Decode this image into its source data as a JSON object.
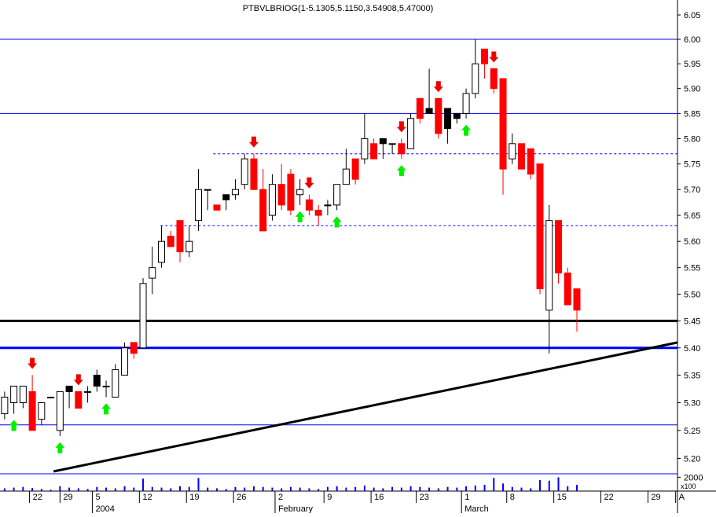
{
  "chart_data": {
    "type": "candlestick",
    "title": "PTBVLBRIOG(1-5.1305,5.1150,3.54908,5.47000)",
    "log_scale": true,
    "ylim": [
      5.177,
      6.081
    ],
    "yticks": [
      6.05,
      {
        "value": 6.0,
        "label": "6.00"
      },
      5.95,
      {
        "value": 5.9,
        "label": "5.90"
      },
      5.85,
      {
        "value": 5.8,
        "label": "5.80"
      },
      5.75,
      {
        "value": 5.7,
        "label": "5.70"
      },
      5.65,
      {
        "value": 5.6,
        "label": "5.60"
      },
      5.55,
      {
        "value": 5.5,
        "label": "5.50"
      },
      5.45,
      {
        "value": 5.4,
        "label": "5.40"
      },
      5.35,
      {
        "value": 5.3,
        "label": "5.30"
      },
      5.25,
      {
        "value": 5.2,
        "label": "5.20"
      }
    ],
    "xlim": [
      -0.5,
      72.9
    ],
    "xticks": [
      {
        "value": 2.7,
        "label": "22"
      },
      {
        "value": 6.0,
        "label": "29"
      },
      {
        "value": 9.5,
        "label": "5"
      },
      {
        "value": 14.6,
        "label": "12"
      },
      {
        "value": 19.7,
        "label": "19"
      },
      {
        "value": 24.8,
        "label": "26"
      },
      {
        "value": 29.3,
        "label": "2"
      },
      {
        "value": 34.6,
        "label": "9"
      },
      {
        "value": 39.7,
        "label": "16"
      },
      {
        "value": 44.6,
        "label": "23"
      },
      {
        "value": 49.5,
        "label": "1"
      },
      {
        "value": 54.4,
        "label": "8"
      },
      {
        "value": 59.5,
        "label": "15"
      },
      {
        "value": 64.6,
        "label": "22"
      },
      {
        "value": 69.7,
        "label": "29"
      },
      {
        "value": 72.7,
        "label": "A"
      }
    ],
    "months": [
      {
        "value": 9.5,
        "label": "2004"
      },
      {
        "value": 29.3,
        "label": "February"
      },
      {
        "value": 49.5,
        "label": "March"
      }
    ],
    "x": [
      0,
      1,
      2,
      3,
      4,
      5,
      6,
      7,
      8,
      9,
      10,
      11,
      12,
      13,
      14,
      15,
      16,
      17,
      18,
      19,
      20,
      21,
      22,
      23,
      24,
      25,
      26,
      27,
      28,
      29,
      30,
      31,
      32,
      33,
      34,
      35,
      36,
      37,
      38,
      39,
      40,
      41,
      42,
      43,
      44,
      45,
      46,
      47,
      48,
      49,
      50,
      51,
      52,
      53,
      54,
      55,
      56,
      57,
      58,
      59,
      60,
      61,
      62
    ],
    "open": [
      5.28,
      5.3,
      5.3,
      5.32,
      5.27,
      5.31,
      5.25,
      5.32,
      5.32,
      5.32,
      5.33,
      5.33,
      5.31,
      5.35,
      5.41,
      5.4,
      5.53,
      5.56,
      5.61,
      5.64,
      5.58,
      5.64,
      5.7,
      5.67,
      5.68,
      5.69,
      5.71,
      5.76,
      5.7,
      5.65,
      5.71,
      5.73,
      5.69,
      5.68,
      5.66,
      5.67,
      5.67,
      5.71,
      5.76,
      5.76,
      5.79,
      5.79,
      5.79,
      5.79,
      5.78,
      5.88,
      5.85,
      5.88,
      5.86,
      5.85,
      5.85,
      5.89,
      5.98,
      5.94,
      5.92,
      5.76,
      5.79,
      5.78,
      5.75,
      5.47,
      5.64,
      5.54,
      5.51
    ],
    "high": [
      5.32,
      5.33,
      5.33,
      5.35,
      5.3,
      5.31,
      5.32,
      5.33,
      5.32,
      5.33,
      5.36,
      5.34,
      5.37,
      5.41,
      5.41,
      5.53,
      5.59,
      5.63,
      5.62,
      5.64,
      5.63,
      5.74,
      5.7,
      5.67,
      5.69,
      5.72,
      5.77,
      5.77,
      5.74,
      5.73,
      5.75,
      5.74,
      5.72,
      5.69,
      5.67,
      5.68,
      5.71,
      5.78,
      5.76,
      5.85,
      5.8,
      5.8,
      5.79,
      5.8,
      5.85,
      5.88,
      5.94,
      5.88,
      5.86,
      5.85,
      5.9,
      6.0,
      5.98,
      5.94,
      5.92,
      5.81,
      5.79,
      5.78,
      5.75,
      5.67,
      5.64,
      5.55,
      5.51
    ],
    "low": [
      5.27,
      5.28,
      5.29,
      5.25,
      5.26,
      5.31,
      5.24,
      5.29,
      5.29,
      5.3,
      5.32,
      5.31,
      5.31,
      5.35,
      5.38,
      5.4,
      5.5,
      5.55,
      5.59,
      5.56,
      5.57,
      5.62,
      5.66,
      5.66,
      5.66,
      5.68,
      5.7,
      5.7,
      5.62,
      5.64,
      5.66,
      5.65,
      5.67,
      5.65,
      5.63,
      5.65,
      5.66,
      5.71,
      5.71,
      5.75,
      5.76,
      5.76,
      5.77,
      5.76,
      5.78,
      5.83,
      5.85,
      5.8,
      5.79,
      5.83,
      5.84,
      5.88,
      5.92,
      5.89,
      5.69,
      5.75,
      5.74,
      5.72,
      5.5,
      5.39,
      5.52,
      5.48,
      5.43
    ],
    "close": [
      5.31,
      5.33,
      5.33,
      5.25,
      5.3,
      5.31,
      5.32,
      5.33,
      5.29,
      5.32,
      5.35,
      5.33,
      5.36,
      5.4,
      5.39,
      5.52,
      5.55,
      5.6,
      5.59,
      5.58,
      5.6,
      5.7,
      5.7,
      5.66,
      5.69,
      5.7,
      5.76,
      5.7,
      5.62,
      5.71,
      5.67,
      5.66,
      5.7,
      5.66,
      5.65,
      5.67,
      5.71,
      5.74,
      5.72,
      5.8,
      5.76,
      5.8,
      5.79,
      5.77,
      5.84,
      5.84,
      5.86,
      5.81,
      5.82,
      5.84,
      5.89,
      5.95,
      5.95,
      5.9,
      5.74,
      5.79,
      5.74,
      5.73,
      5.51,
      5.64,
      5.54,
      5.48,
      5.47
    ],
    "colors": [
      "#ffffff",
      "#ffffff",
      "#ffffff",
      "#ff0000",
      "#ffffff",
      "#ffffff",
      "#ffffff",
      "#000000",
      "#ff0000",
      "#ffffff",
      "#000000",
      "#ffffff",
      "#ffffff",
      "#ffffff",
      "#ff0000",
      "#ffffff",
      "#ffffff",
      "#ffffff",
      "#ff0000",
      "#ff0000",
      "#ffffff",
      "#ffffff",
      "#ffffff",
      "#ff0000",
      "#000000",
      "#ffffff",
      "#ffffff",
      "#ff0000",
      "#ff0000",
      "#ffffff",
      "#ff0000",
      "#ff0000",
      "#ffffff",
      "#ff0000",
      "#ff0000",
      "#ffffff",
      "#ffffff",
      "#ffffff",
      "#ff0000",
      "#ffffff",
      "#ff0000",
      "#000000",
      "#ffffff",
      "#ff0000",
      "#ffffff",
      "#ff0000",
      "#000000",
      "#ff0000",
      "#000000",
      "#000000",
      "#ffffff",
      "#ffffff",
      "#ff0000",
      "#ff0000",
      "#ff0000",
      "#ffffff",
      "#ff0000",
      "#ff0000",
      "#ff0000",
      "#ffffff",
      "#ff0000",
      "#ff0000",
      "#ff0000"
    ],
    "signals": [
      {
        "x": 1,
        "type": "buy"
      },
      {
        "x": 6,
        "type": "buy"
      },
      {
        "x": 11,
        "type": "buy"
      },
      {
        "x": 32,
        "type": "buy"
      },
      {
        "x": 36,
        "type": "buy"
      },
      {
        "x": 43,
        "type": "buy"
      },
      {
        "x": 50,
        "type": "buy"
      },
      {
        "x": 3,
        "type": "sell"
      },
      {
        "x": 8,
        "type": "sell"
      },
      {
        "x": 27,
        "type": "sell"
      },
      {
        "x": 33,
        "type": "sell"
      },
      {
        "x": 43,
        "type": "sell"
      },
      {
        "x": 47,
        "type": "sell"
      },
      {
        "x": 53,
        "type": "sell"
      }
    ],
    "levels": [
      {
        "value": 6.0,
        "color": "#0000ff",
        "width": 1,
        "from": -0.5
      },
      {
        "value": 5.85,
        "color": "#0000ff",
        "width": 1,
        "from": -0.5
      },
      {
        "value": 5.77,
        "color": "#0000ff",
        "width": 1,
        "from": 22.6,
        "dashed": true
      },
      {
        "value": 5.63,
        "color": "#0000ff",
        "width": 1,
        "from": 16.9,
        "dashed": true
      },
      {
        "value": 5.45,
        "color": "#000000",
        "width": 3,
        "from": -0.5
      },
      {
        "value": 5.4,
        "color": "#0000ff",
        "width": 3,
        "from": -0.5
      },
      {
        "value": 5.26,
        "color": "#0000ff",
        "width": 1,
        "from": -0.5
      }
    ],
    "trendline": {
      "x": [
        5.3,
        72.9
      ],
      "y": [
        5.177,
        5.41
      ],
      "color": "#000000"
    },
    "volume": [
      400,
      500,
      600,
      450,
      300,
      200,
      700,
      500,
      400,
      300,
      600,
      500,
      400,
      700,
      500,
      1800,
      600,
      500,
      400,
      700,
      600,
      1900,
      500,
      400,
      300,
      600,
      500,
      700,
      600,
      500,
      400,
      600,
      500,
      400,
      300,
      600,
      700,
      500,
      600,
      800,
      500,
      400,
      600,
      500,
      700,
      600,
      500,
      400,
      600,
      500,
      700,
      800,
      900,
      1900,
      1100,
      600,
      500,
      400,
      1600,
      1500,
      2000,
      700,
      900
    ],
    "vlim": [
      0,
      2500
    ],
    "vticks": [
      2000
    ],
    "vunit": "x100"
  }
}
